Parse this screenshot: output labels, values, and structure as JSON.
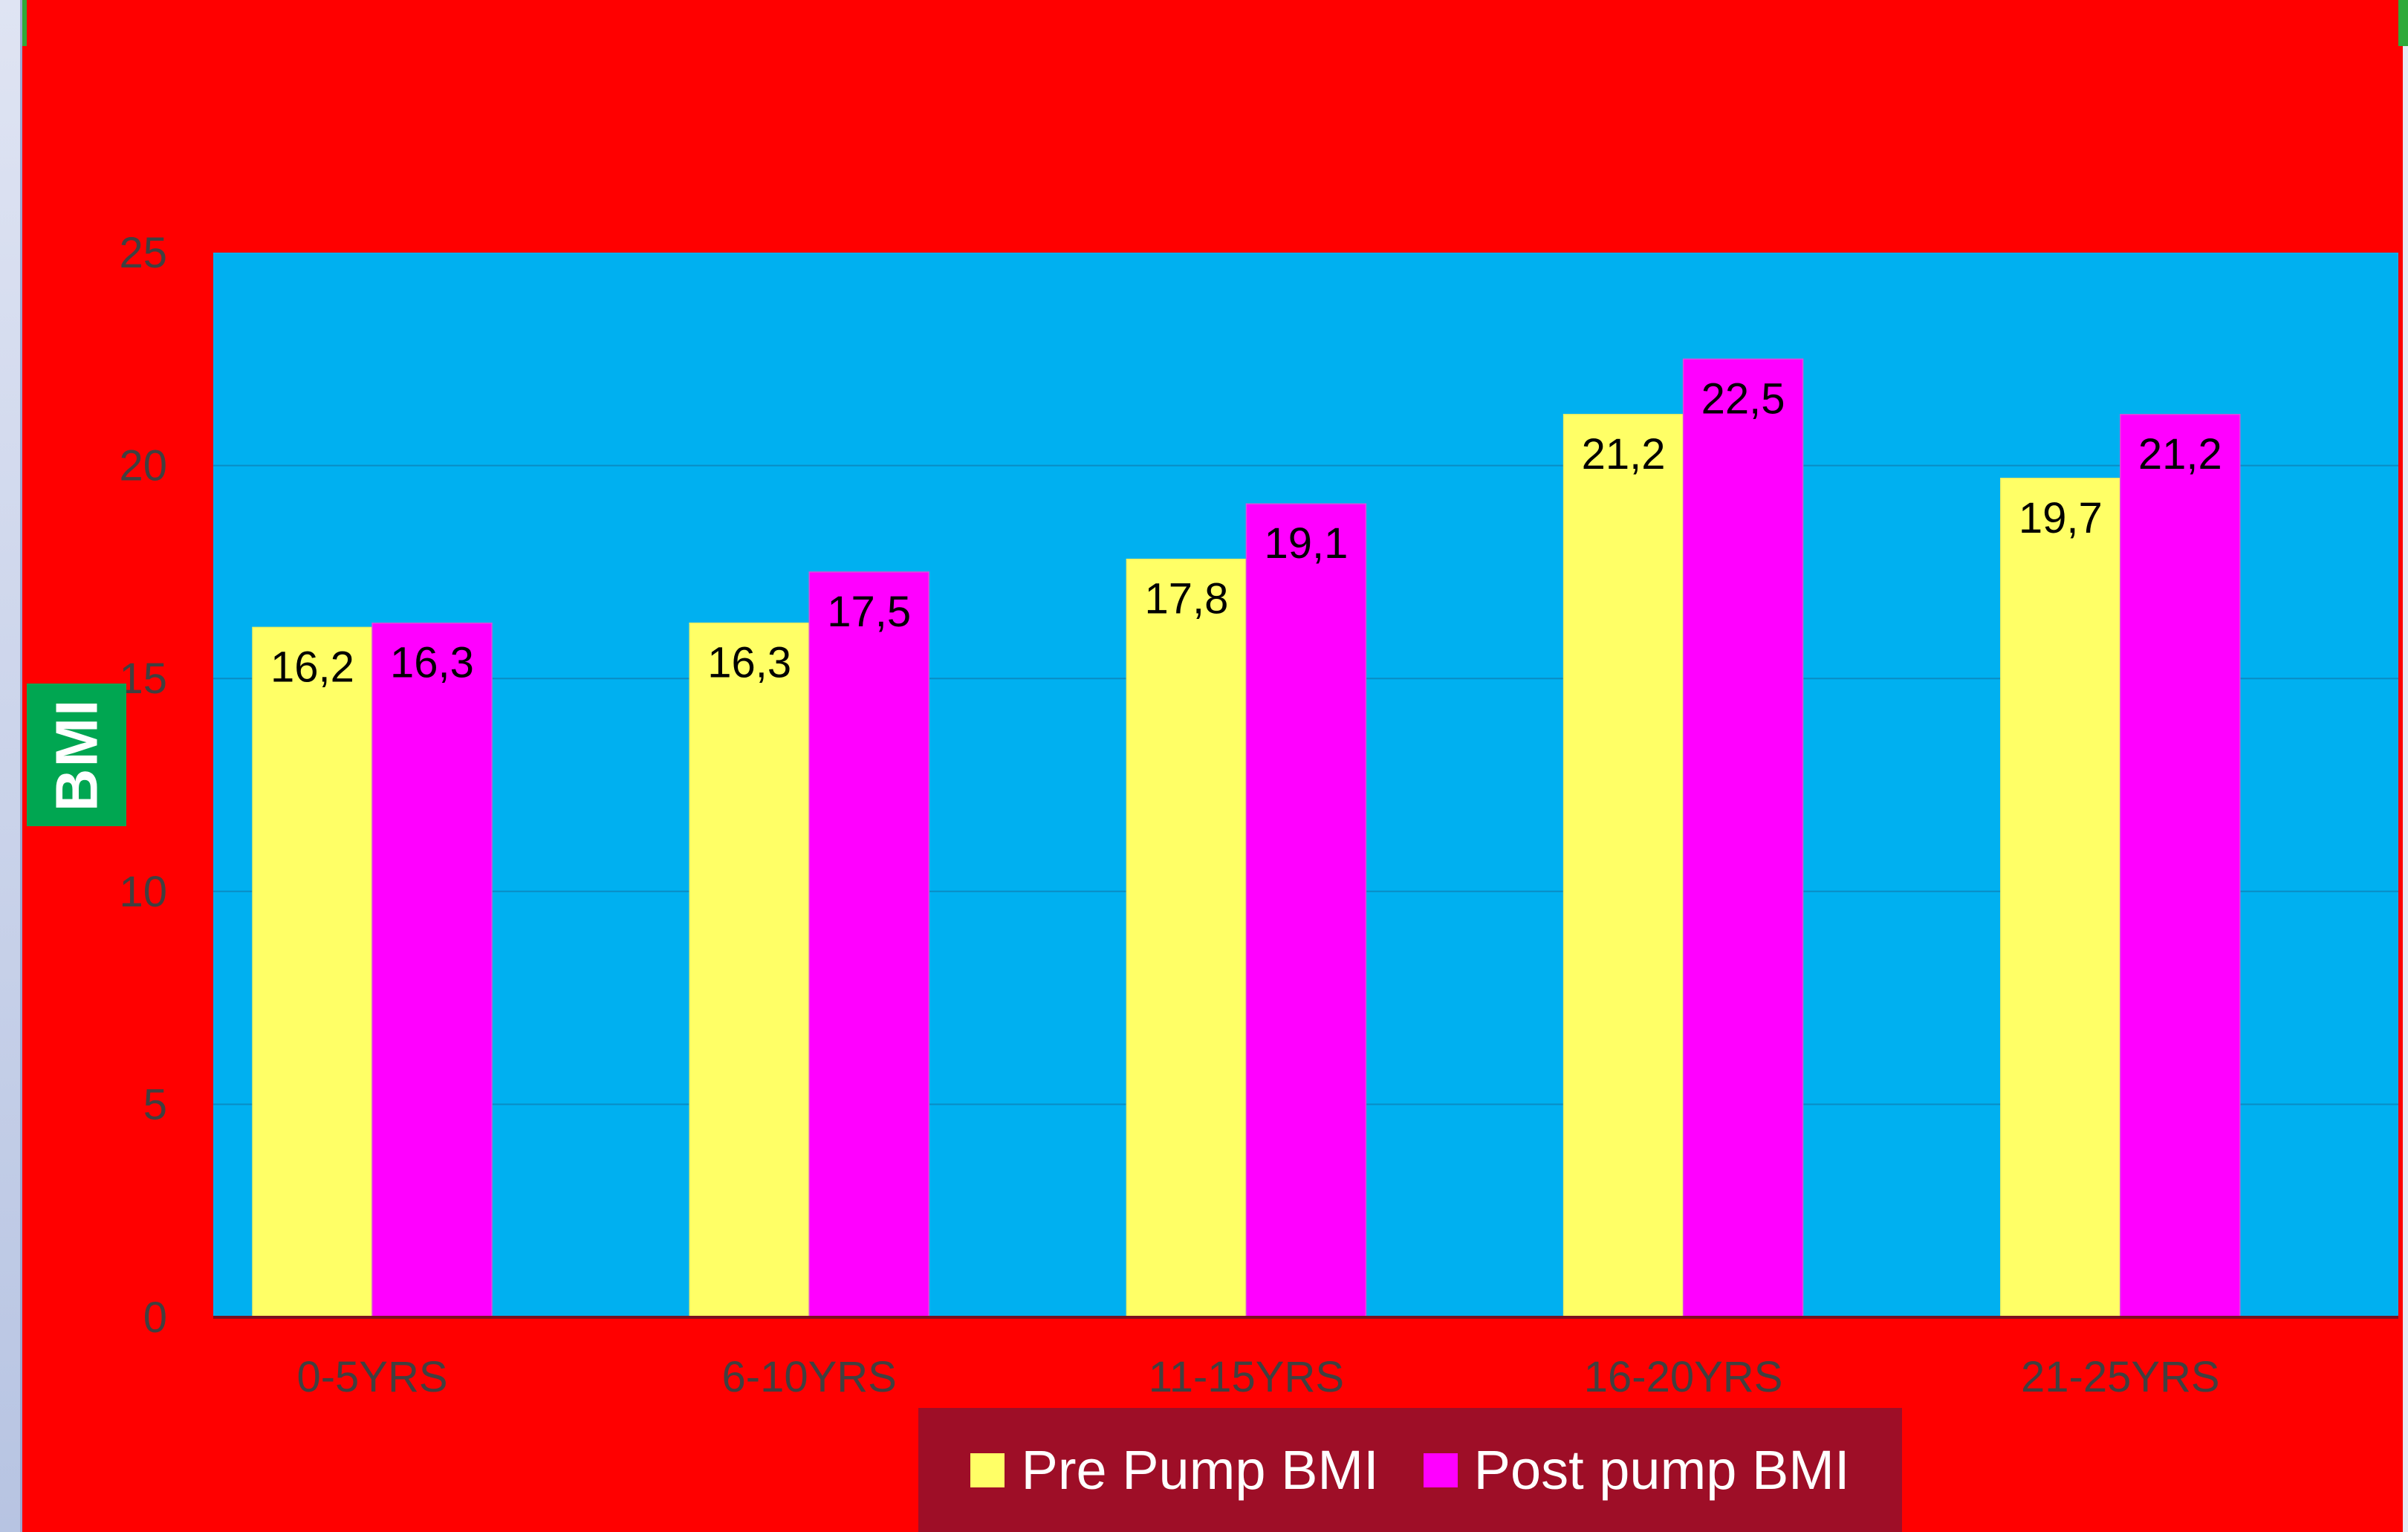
{
  "colors": {
    "page_background": "#ff0000",
    "plot_background": "#00b0f0",
    "pre_series": "#ffff66",
    "post_series": "#ff00ff",
    "ylabel_background": "#00a651",
    "legend_background": "#9e0e27",
    "gridline": "#0a8cc4",
    "axis_text": "#404040"
  },
  "chart_data": {
    "type": "bar",
    "categories": [
      "0-5YRS",
      "6-10YRS",
      "11-15YRS",
      "16-20YRS",
      "21-25YRS"
    ],
    "series": [
      {
        "name": "Pre Pump BMI",
        "values": [
          16.2,
          16.3,
          17.8,
          21.2,
          19.7
        ],
        "labels": [
          "16,2",
          "16,3",
          "17,8",
          "21,2",
          "19,7"
        ]
      },
      {
        "name": "Post pump BMI",
        "values": [
          16.3,
          17.5,
          19.1,
          22.5,
          21.2
        ],
        "labels": [
          "16,3",
          "17,5",
          "19,1",
          "22,5",
          "21,2"
        ]
      }
    ],
    "title": "",
    "xlabel": "",
    "ylabel": "BMI",
    "ylim": [
      0,
      25
    ],
    "yticks": [
      "0",
      "5",
      "10",
      "15",
      "20",
      "25"
    ],
    "grid": true,
    "legend_position": "bottom"
  },
  "legend": {
    "pre_label": "Pre Pump BMI",
    "post_label": "Post pump BMI"
  },
  "axis": {
    "ylabel": "BMI"
  }
}
